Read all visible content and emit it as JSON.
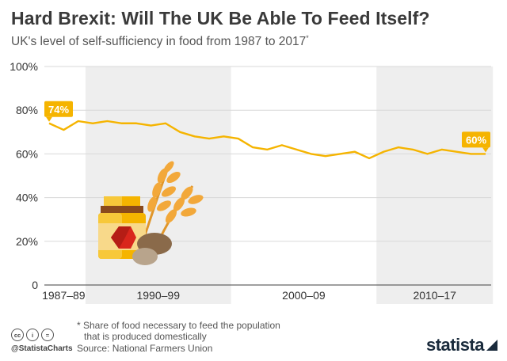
{
  "header": {
    "title": "Hard Brexit: Will The UK Be Able To Feed Itself?",
    "subtitle": "UK's level of self-sufficiency in food from 1987 to 2017",
    "subtitle_mark": "*"
  },
  "footer": {
    "footnote_line1": "* Share of food necessary to feed the population",
    "footnote_line2": "that is produced domestically",
    "source": "Source: National Farmers Union",
    "handle": "@StatistaCharts",
    "brand": "statista",
    "license_icons": [
      "cc",
      "i",
      "="
    ]
  },
  "colors": {
    "line": "#f5b400",
    "band": "#eeeeee",
    "grid": "#d8d8d8",
    "text": "#333333"
  },
  "illustration": [
    "jar-icon",
    "wheat-icon",
    "potato-icon"
  ],
  "chart_data": {
    "type": "line",
    "title": "Hard Brexit: Will The UK Be Able To Feed Itself?",
    "x": [
      1987,
      1988,
      1989,
      1990,
      1991,
      1992,
      1993,
      1994,
      1995,
      1996,
      1997,
      1998,
      1999,
      2000,
      2001,
      2002,
      2003,
      2004,
      2005,
      2006,
      2007,
      2008,
      2009,
      2010,
      2011,
      2012,
      2013,
      2014,
      2015,
      2016,
      2017
    ],
    "series": [
      {
        "values": [
          74,
          71,
          75,
          74,
          75,
          74,
          74,
          73,
          74,
          70,
          68,
          67,
          68,
          67,
          63,
          62,
          64,
          62,
          60,
          59,
          60,
          61,
          58,
          61,
          63,
          62,
          60,
          62,
          61,
          60,
          60
        ]
      }
    ],
    "ylim": [
      0,
      100
    ],
    "yticks": [
      "0",
      "20%",
      "40%",
      "60%",
      "80%",
      "100%"
    ],
    "bands": [
      {
        "label": "1987–89",
        "start": 1987,
        "end": 1989,
        "shaded": false
      },
      {
        "label": "1990–99",
        "start": 1990,
        "end": 1999,
        "shaded": true
      },
      {
        "label": "2000–09",
        "start": 2000,
        "end": 2009,
        "shaded": false
      },
      {
        "label": "2010–17",
        "start": 2010,
        "end": 2017,
        "shaded": true
      }
    ],
    "annotations": [
      {
        "label": "74%",
        "x": 1987,
        "value": 74
      },
      {
        "label": "60%",
        "x": 2017,
        "value": 60
      }
    ],
    "grid": true
  }
}
